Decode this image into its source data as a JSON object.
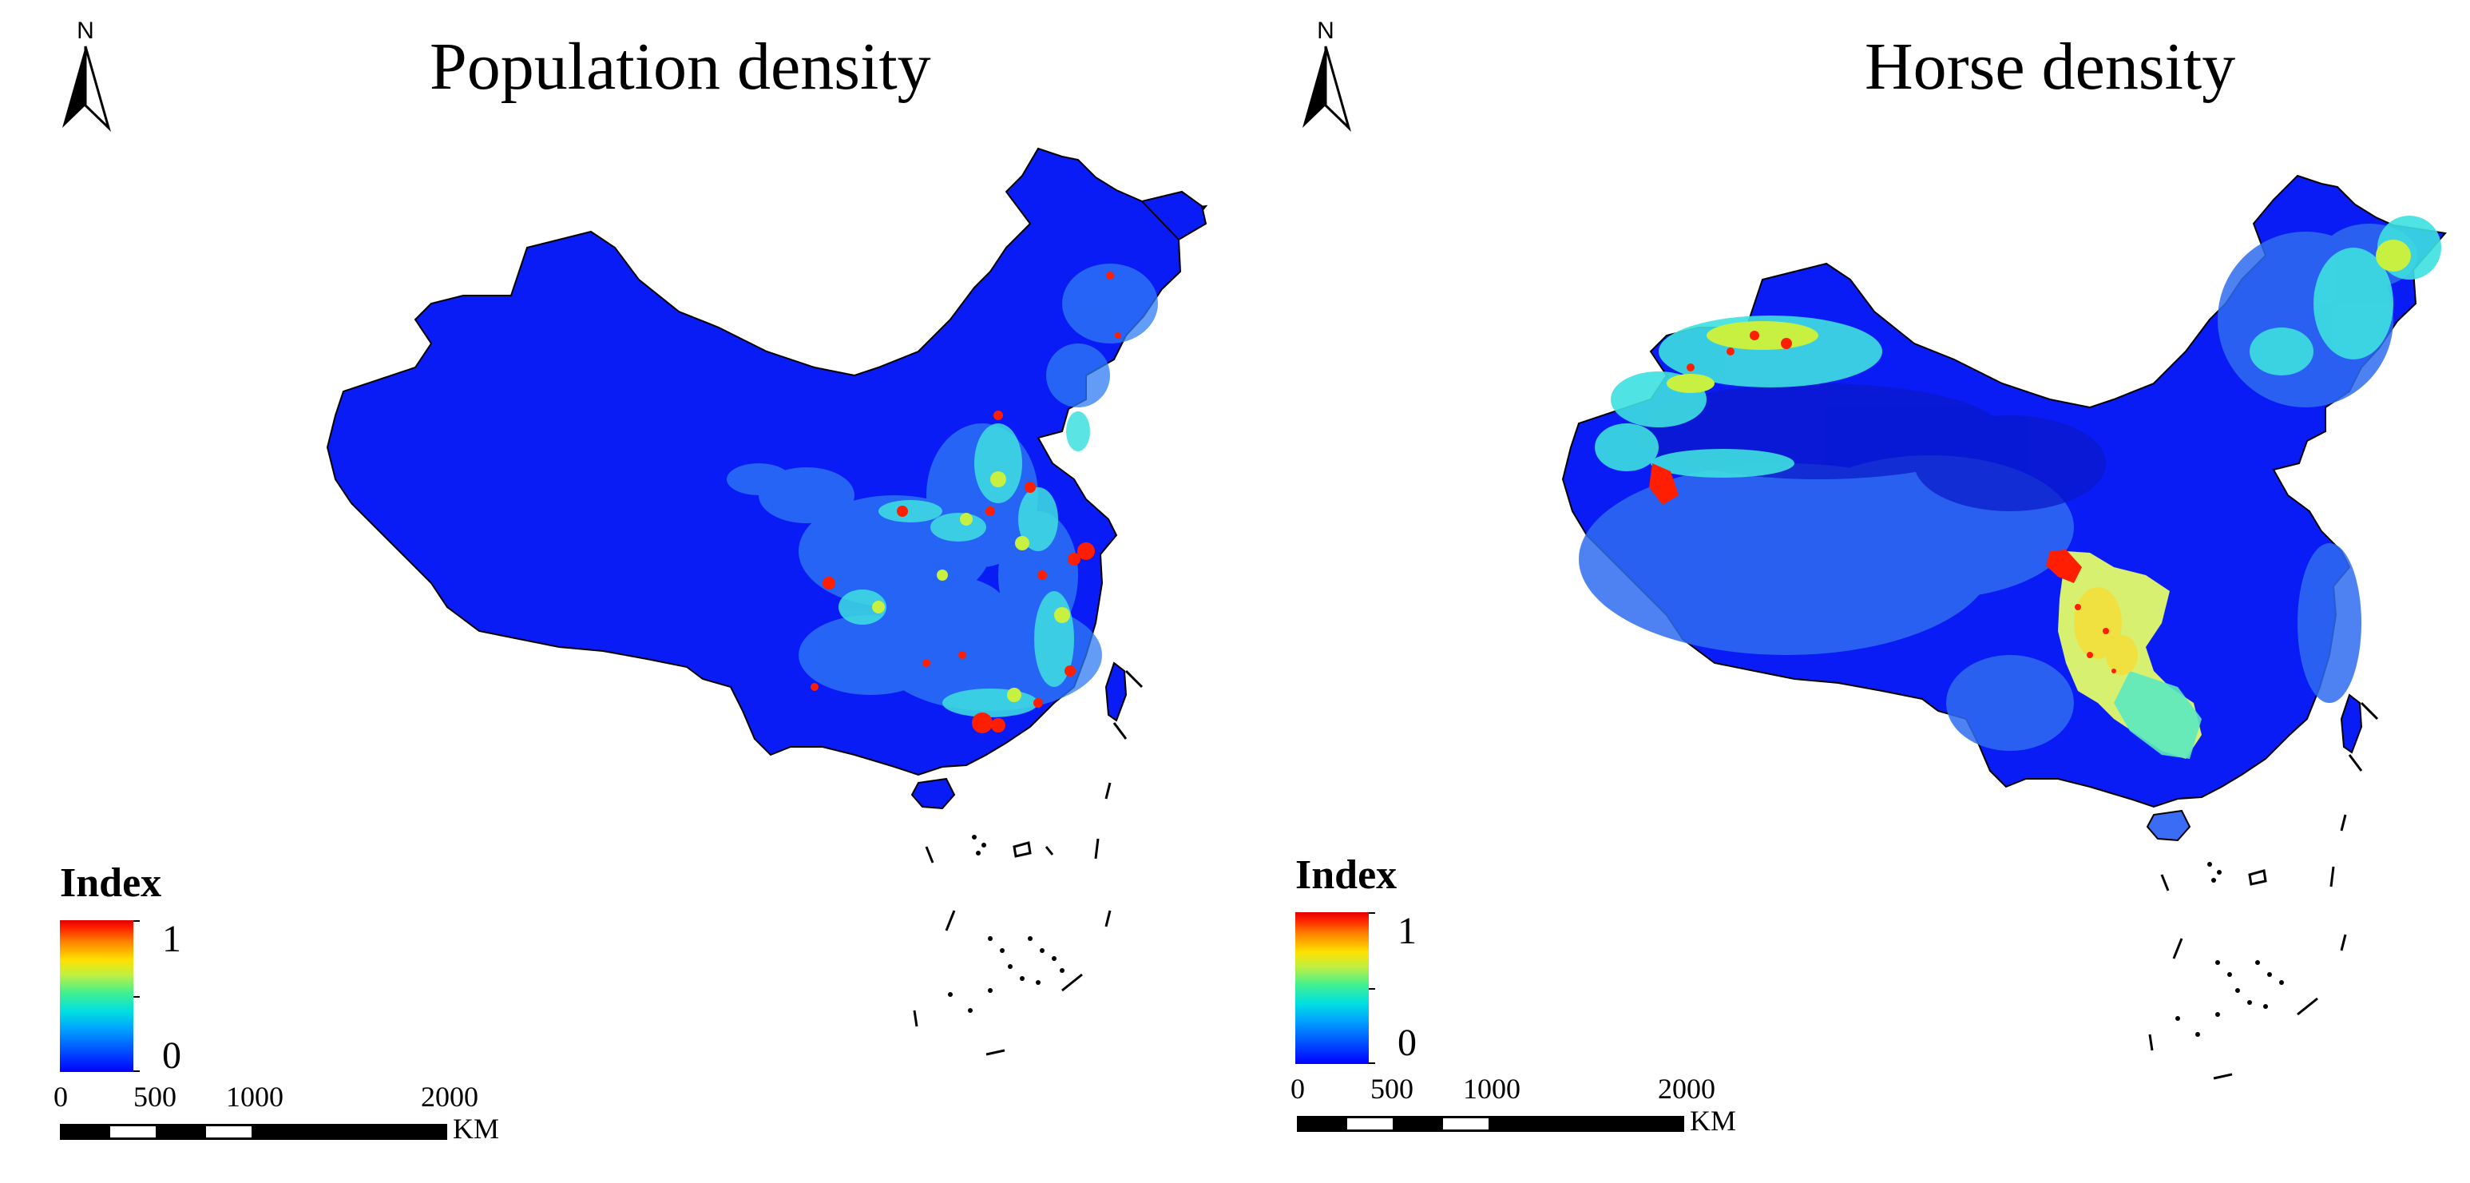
{
  "panels": [
    {
      "title": "Population density",
      "north_label": "N",
      "legend": {
        "title": "Index",
        "max_label": "1",
        "min_label": "0"
      },
      "scale": {
        "labels": [
          "0",
          "500",
          "1000",
          "2000"
        ],
        "unit": "KM"
      },
      "colors": {
        "base": "#0a1cf5",
        "hotspot": "#ff1e00"
      }
    },
    {
      "title": "Horse density",
      "north_label": "N",
      "legend": {
        "title": "Index",
        "max_label": "1",
        "min_label": "0"
      },
      "scale": {
        "labels": [
          "0",
          "500",
          "1000",
          "2000"
        ],
        "unit": "KM"
      },
      "colors": {
        "base": "#0a1cf5",
        "hotspot": "#ff1e00",
        "mid": "#d8f070"
      }
    }
  ]
}
